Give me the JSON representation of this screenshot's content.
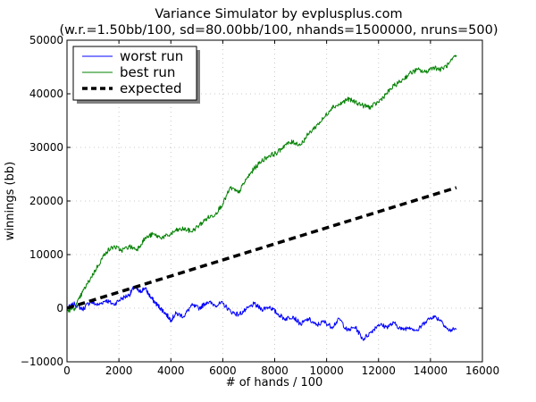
{
  "chart_data": {
    "type": "line",
    "title": "Variance Simulator by evplusplus.com",
    "subtitle": "(w.r.=1.50bb/100, sd=80.00bb/100, nhands=1500000, nruns=500)",
    "xlabel": "# of hands / 100",
    "ylabel": "winnings (bb)",
    "xlim": [
      0,
      16000
    ],
    "ylim": [
      -10000,
      50000
    ],
    "xticks": [
      0,
      2000,
      4000,
      6000,
      8000,
      10000,
      12000,
      14000,
      16000
    ],
    "yticks": [
      -10000,
      0,
      10000,
      20000,
      30000,
      40000,
      50000
    ],
    "xtick_labels": [
      "0",
      "2000",
      "4000",
      "6000",
      "8000",
      "10000",
      "12000",
      "14000",
      "16000"
    ],
    "ytick_labels": [
      "−10000",
      "0",
      "10000",
      "20000",
      "30000",
      "40000",
      "50000"
    ],
    "grid": true,
    "legend_position": "top-left",
    "series": [
      {
        "name": "worst run",
        "color": "#0000ff",
        "style": "solid",
        "x": [
          0,
          300,
          600,
          900,
          1200,
          1500,
          1800,
          2100,
          2400,
          2600,
          2800,
          3000,
          3200,
          3400,
          3600,
          3800,
          4000,
          4200,
          4500,
          4800,
          5100,
          5400,
          5700,
          6000,
          6300,
          6600,
          6900,
          7200,
          7500,
          7800,
          8100,
          8400,
          8700,
          9000,
          9300,
          9600,
          9900,
          10200,
          10500,
          10800,
          11100,
          11400,
          11700,
          12000,
          12300,
          12600,
          12900,
          13200,
          13500,
          13800,
          14100,
          14400,
          14700,
          15000
        ],
        "y": [
          0,
          800,
          -200,
          1200,
          600,
          1500,
          700,
          1800,
          2500,
          4000,
          3000,
          3800,
          2200,
          1000,
          0,
          -1000,
          -2200,
          -1000,
          -1500,
          500,
          0,
          1200,
          600,
          900,
          -600,
          -1200,
          -300,
          800,
          -200,
          300,
          -1000,
          -2000,
          -1500,
          -3000,
          -2000,
          -3200,
          -2500,
          -3500,
          -2000,
          -4200,
          -3500,
          -5800,
          -4500,
          -3000,
          -3500,
          -2800,
          -4000,
          -3500,
          -4200,
          -2500,
          -1500,
          -2200,
          -4200,
          -3800
        ]
      },
      {
        "name": "best run",
        "color": "#008000",
        "style": "solid",
        "x": [
          0,
          300,
          600,
          900,
          1200,
          1500,
          1800,
          2100,
          2400,
          2700,
          3000,
          3300,
          3600,
          3900,
          4200,
          4500,
          4800,
          5100,
          5400,
          5700,
          6000,
          6300,
          6600,
          6900,
          7200,
          7500,
          7800,
          8100,
          8400,
          8700,
          9000,
          9300,
          9600,
          9900,
          10200,
          10500,
          10800,
          11100,
          11400,
          11700,
          12000,
          12300,
          12600,
          12900,
          13200,
          13500,
          13800,
          14100,
          14400,
          14700,
          15000
        ],
        "y": [
          -500,
          0,
          3000,
          5500,
          8000,
          10500,
          11500,
          10800,
          11500,
          11000,
          13000,
          13800,
          13200,
          13500,
          14500,
          14800,
          14300,
          15500,
          16800,
          17500,
          19500,
          22500,
          21500,
          24000,
          26000,
          27500,
          28500,
          29000,
          30500,
          31000,
          30500,
          32500,
          34000,
          35500,
          37500,
          38000,
          39000,
          38500,
          37800,
          37500,
          38500,
          40000,
          41500,
          42500,
          43800,
          44500,
          44000,
          45000,
          44500,
          45500,
          47200
        ]
      },
      {
        "name": "expected",
        "color": "#000000",
        "style": "dashed",
        "x": [
          0,
          15000
        ],
        "y": [
          0,
          22500
        ]
      }
    ]
  }
}
